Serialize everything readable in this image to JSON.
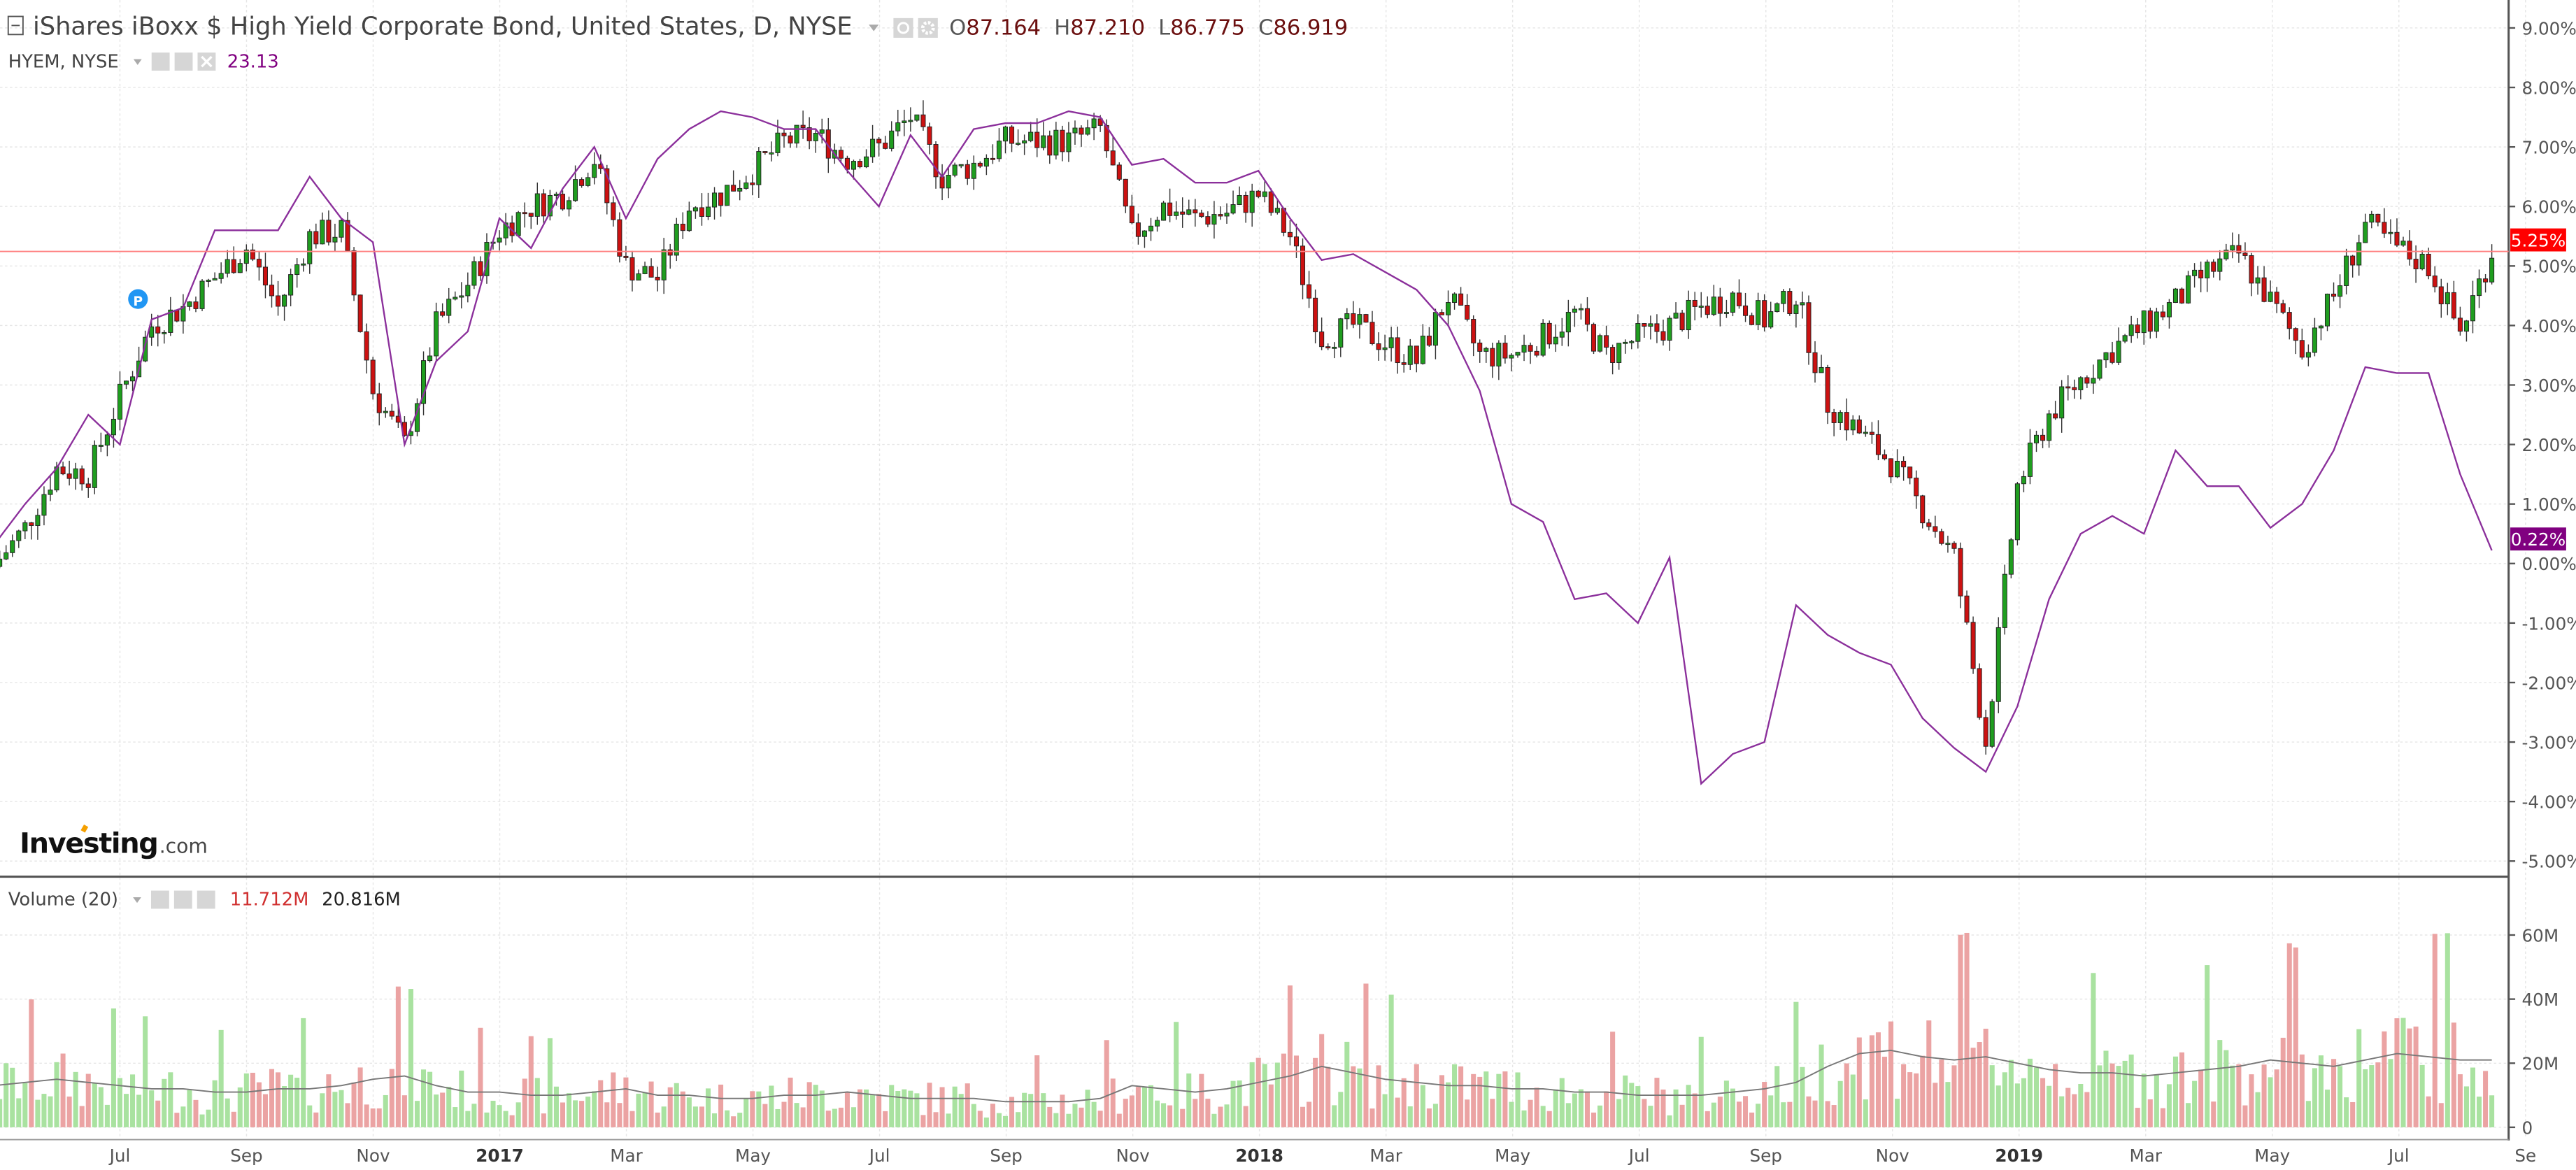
{
  "header": {
    "title": "iShares iBoxx $ High Yield Corporate Bond, United States, D, NYSE",
    "ohlc": {
      "o_label": "O",
      "o": "87.164",
      "h_label": "H",
      "h": "87.210",
      "l_label": "L",
      "l": "86.775",
      "c_label": "C",
      "c": "86.919"
    },
    "compare_symbol": "HYEM, NYSE",
    "compare_value": "23.13"
  },
  "volume_legend": {
    "label": "Volume (20)",
    "value1": "11.712M",
    "value2": "20.816M"
  },
  "logo": {
    "text": "Investing",
    "suffix": ".com"
  },
  "marker_label": "P",
  "colors": {
    "up": "#1f9d1f",
    "down": "#cc1111",
    "hyem": "#8b2f9b",
    "last_price_badge": "#ff0000",
    "hyem_badge": "#800080",
    "vol_up": "#a9e2a0",
    "vol_down": "#eba3a3"
  },
  "chart_data": {
    "type": "line",
    "y_axis": {
      "ticks": [
        "9.00%",
        "8.00%",
        "7.00%",
        "6.00%",
        "5.00%",
        "4.00%",
        "3.00%",
        "2.00%",
        "1.00%",
        "0.00%",
        "-1.00%",
        "-2.00%",
        "-3.00%",
        "-4.00%",
        "-5.00%"
      ],
      "ylim": [
        -5,
        9
      ],
      "unit": "%"
    },
    "x_axis": {
      "ticks": [
        "Jul",
        "Sep",
        "Nov",
        "2017",
        "Mar",
        "May",
        "Jul",
        "Sep",
        "Nov",
        "2018",
        "Mar",
        "May",
        "Jul",
        "Sep",
        "Nov",
        "2019",
        "Mar",
        "May",
        "Jul",
        "Se"
      ]
    },
    "grid": true,
    "start": "2016-05-01",
    "frequency": "semi-monthly",
    "series": [
      {
        "name": "iShares iBoxx $ High Yield Corporate Bond",
        "style": "candlestick",
        "last_label": "5.25%",
        "values": [
          -0.05,
          0.6,
          1.6,
          1.5,
          2.8,
          4.0,
          4.3,
          4.8,
          5.3,
          4.3,
          5.5,
          5.6,
          2.9,
          2.0,
          4.0,
          4.7,
          5.6,
          6.0,
          6.2,
          6.8,
          5.0,
          4.8,
          6.0,
          6.2,
          6.6,
          7.1,
          7.2,
          6.8,
          7.0,
          7.5,
          6.5,
          6.7,
          7.1,
          7.1,
          7.1,
          7.3,
          5.5,
          6.0,
          5.8,
          5.9,
          6.2,
          5.5,
          3.8,
          4.0,
          3.7,
          3.4,
          4.5,
          3.5,
          3.5,
          3.8,
          4.2,
          3.5,
          3.8,
          4.0,
          4.3,
          4.5,
          4.1,
          4.5,
          2.7,
          2.2,
          1.7,
          0.9,
          0.1,
          -3.0,
          1.3,
          2.5,
          3.1,
          3.6,
          4.0,
          4.4,
          4.9,
          5.2,
          4.4,
          3.6,
          4.5,
          5.7,
          5.3,
          5.0,
          3.9,
          5.25
        ]
      },
      {
        "name": "HYEM, NYSE",
        "style": "line",
        "last_label": "0.22%",
        "values": [
          0.3,
          1.0,
          1.6,
          2.5,
          2.0,
          4.1,
          4.3,
          5.6,
          5.6,
          5.6,
          6.5,
          5.8,
          5.4,
          2.0,
          3.4,
          3.9,
          5.8,
          5.3,
          6.3,
          7.0,
          5.8,
          6.8,
          7.3,
          7.6,
          7.5,
          7.3,
          7.3,
          6.6,
          6.0,
          7.2,
          6.5,
          7.3,
          7.4,
          7.4,
          7.6,
          7.5,
          6.7,
          6.8,
          6.4,
          6.4,
          6.6,
          5.8,
          5.1,
          5.2,
          4.9,
          4.6,
          4.0,
          2.9,
          1.0,
          0.7,
          -0.6,
          -0.5,
          -1.0,
          0.1,
          -3.7,
          -3.2,
          -3.0,
          -0.7,
          -1.2,
          -1.5,
          -1.7,
          -2.6,
          -3.1,
          -3.5,
          -2.4,
          -0.6,
          0.5,
          0.8,
          0.5,
          1.9,
          1.3,
          1.3,
          0.6,
          1.0,
          1.9,
          3.3,
          3.2,
          3.2,
          1.5,
          0.22
        ]
      }
    ],
    "volume": {
      "y_axis": {
        "ticks": [
          "60M",
          "40M",
          "20M",
          "0"
        ],
        "ylim": [
          0,
          70
        ]
      },
      "ma20_millions": [
        13,
        14,
        15,
        14,
        13,
        12,
        12,
        11,
        11,
        12,
        12,
        13,
        15,
        16,
        13,
        11,
        11,
        10,
        10,
        11,
        12,
        10,
        10,
        9,
        9,
        10,
        10,
        11,
        10,
        9,
        9,
        9,
        8,
        8,
        8,
        9,
        13,
        12,
        11,
        12,
        14,
        16,
        19,
        17,
        15,
        14,
        13,
        13,
        12,
        12,
        11,
        11,
        10,
        10,
        10,
        11,
        12,
        14,
        19,
        23,
        24,
        22,
        21,
        22,
        20,
        18,
        17,
        17,
        16,
        17,
        18,
        19,
        21,
        20,
        19,
        21,
        23,
        22,
        21,
        21
      ]
    }
  }
}
